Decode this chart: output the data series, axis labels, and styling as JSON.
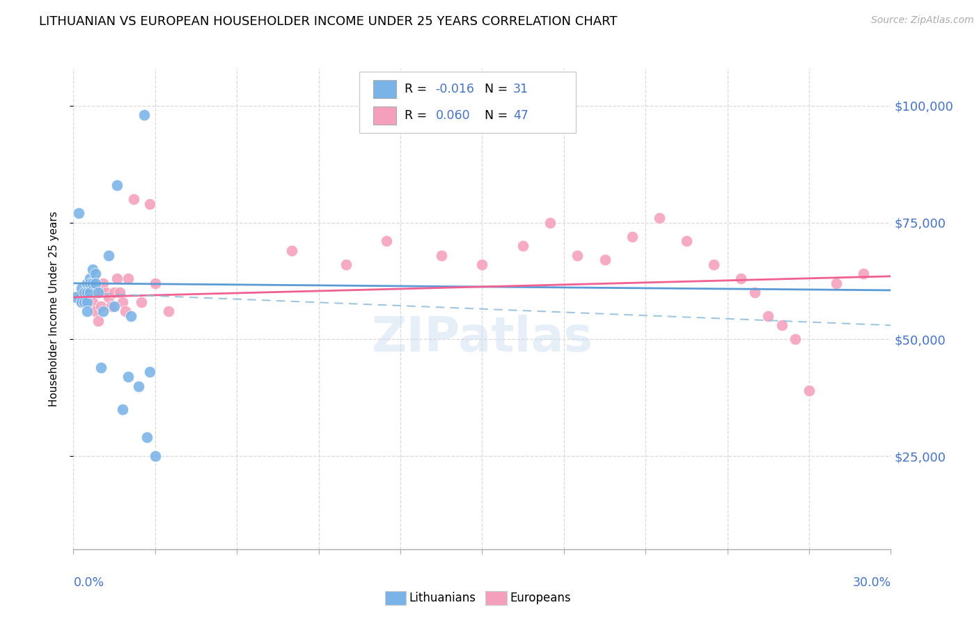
{
  "title": "LITHUANIAN VS EUROPEAN HOUSEHOLDER INCOME UNDER 25 YEARS CORRELATION CHART",
  "source": "Source: ZipAtlas.com",
  "ylabel": "Householder Income Under 25 years",
  "yticks": [
    25000,
    50000,
    75000,
    100000
  ],
  "ytick_labels": [
    "$25,000",
    "$50,000",
    "$75,000",
    "$100,000"
  ],
  "xmin": 0.0,
  "xmax": 0.3,
  "ymin": 5000,
  "ymax": 108000,
  "blue_color": "#7ab3e8",
  "pink_color": "#f4a0bc",
  "blue_line_color": "#5b9bd5",
  "pink_line_color": "#f06090",
  "blue_dash_color": "#90bcd8",
  "grid_color": "#d8d8d8",
  "axis_label_color": "#4472c4",
  "watermark": "ZIPatlas",
  "legend_R1": "-0.016",
  "legend_N1": "31",
  "legend_R2": "0.060",
  "legend_N2": "47",
  "blue_trend_y0": 62000,
  "blue_trend_y1": 60500,
  "pink_trend_y0": 59000,
  "pink_trend_y1": 63500,
  "dash_trend_y0": 60000,
  "dash_trend_y1": 53000,
  "lith_x": [
    0.001,
    0.002,
    0.003,
    0.003,
    0.004,
    0.004,
    0.005,
    0.005,
    0.005,
    0.005,
    0.006,
    0.006,
    0.006,
    0.007,
    0.007,
    0.008,
    0.008,
    0.009,
    0.01,
    0.011,
    0.013,
    0.015,
    0.016,
    0.018,
    0.02,
    0.021,
    0.024,
    0.026,
    0.027,
    0.028,
    0.03
  ],
  "lith_y": [
    59000,
    77000,
    61000,
    58000,
    60000,
    58000,
    62000,
    60000,
    58000,
    56000,
    63000,
    62000,
    60000,
    65000,
    62000,
    64000,
    62000,
    60000,
    44000,
    56000,
    68000,
    57000,
    83000,
    35000,
    42000,
    55000,
    40000,
    98000,
    29000,
    43000,
    25000
  ],
  "euro_x": [
    0.002,
    0.003,
    0.004,
    0.005,
    0.006,
    0.007,
    0.007,
    0.008,
    0.009,
    0.01,
    0.01,
    0.011,
    0.012,
    0.013,
    0.014,
    0.015,
    0.016,
    0.017,
    0.018,
    0.019,
    0.02,
    0.022,
    0.025,
    0.028,
    0.03,
    0.035,
    0.08,
    0.1,
    0.115,
    0.135,
    0.15,
    0.165,
    0.175,
    0.185,
    0.195,
    0.205,
    0.215,
    0.225,
    0.235,
    0.245,
    0.25,
    0.255,
    0.26,
    0.265,
    0.27,
    0.28,
    0.29
  ],
  "euro_y": [
    59000,
    58000,
    60000,
    59000,
    62000,
    60000,
    58000,
    56000,
    54000,
    57000,
    60000,
    62000,
    60000,
    59000,
    57000,
    60000,
    63000,
    60000,
    58000,
    56000,
    63000,
    80000,
    58000,
    79000,
    62000,
    56000,
    69000,
    66000,
    71000,
    68000,
    66000,
    70000,
    75000,
    68000,
    67000,
    72000,
    76000,
    71000,
    66000,
    63000,
    60000,
    55000,
    53000,
    50000,
    39000,
    62000,
    64000
  ]
}
